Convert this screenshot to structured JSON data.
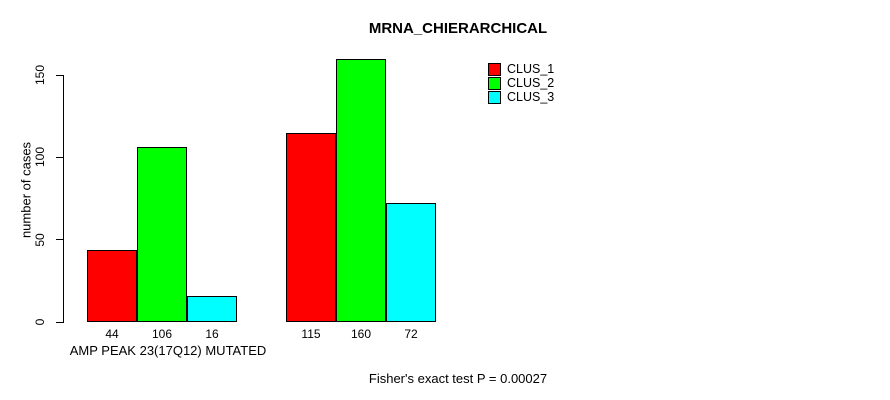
{
  "title": "MRNA_CHIERARCHICAL",
  "footer_annotation": "Fisher's exact test P = 0.00027",
  "x_axis": {
    "group_label": "AMP PEAK 23(17Q12) MUTATED"
  },
  "y_axis": {
    "label": "number of cases",
    "ticks": [
      0,
      50,
      100,
      150
    ]
  },
  "legend": {
    "position": "top-right",
    "items": [
      {
        "label": "CLUS_1",
        "color": "#FF0000"
      },
      {
        "label": "CLUS_2",
        "color": "#00FF00"
      },
      {
        "label": "CLUS_3",
        "color": "#00FFFF"
      }
    ]
  },
  "chart_data": {
    "type": "bar",
    "title": "MRNA_CHIERARCHICAL",
    "xlabel": "AMP PEAK 23(17Q12) MUTATED",
    "ylabel": "number of cases",
    "ylim": [
      0,
      150
    ],
    "yticks": [
      0,
      50,
      100,
      150
    ],
    "grid": false,
    "legend_position": "top-right",
    "categories": [
      "AMP PEAK 23(17Q12) MUTATED",
      ""
    ],
    "series": [
      {
        "name": "CLUS_1",
        "color": "#FF0000",
        "values": [
          44,
          115
        ]
      },
      {
        "name": "CLUS_2",
        "color": "#00FF00",
        "values": [
          106,
          160
        ]
      },
      {
        "name": "CLUS_3",
        "color": "#00FFFF",
        "values": [
          16,
          72
        ]
      }
    ],
    "bar_value_labels": [
      [
        44,
        106,
        16
      ],
      [
        115,
        160,
        72
      ]
    ],
    "annotation": "Fisher's exact test P = 0.00027"
  }
}
